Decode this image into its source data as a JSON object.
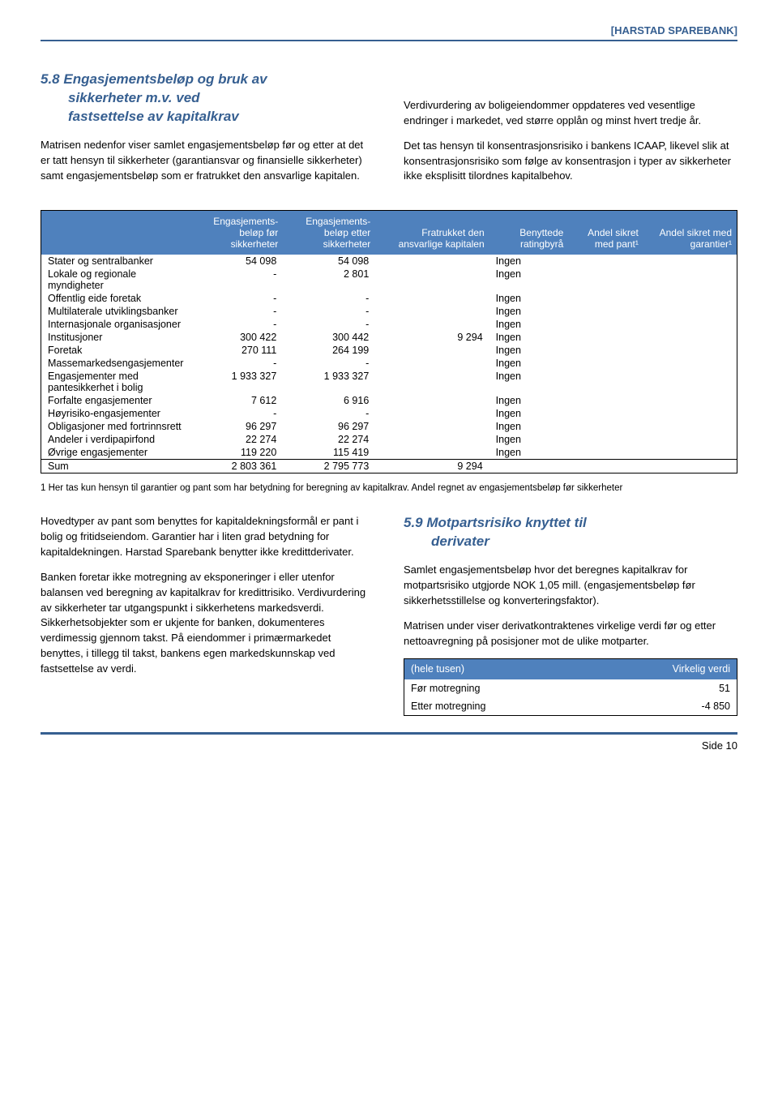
{
  "header": {
    "bank": "HARSTAD SPAREBANK"
  },
  "section58": {
    "title_line1": "5.8 Engasjementsbeløp og bruk av",
    "title_line2": "sikkerheter m.v. ved",
    "title_line3": "fastsettelse av kapitalkrav",
    "left_p1": "Matrisen nedenfor viser samlet engasjementsbeløp før og etter at det er tatt hensyn til sikkerheter (garantiansvar og finansielle sikkerheter) samt engasjementsbeløp som er fratrukket den ansvarlige kapitalen.",
    "right_p1": "Verdivurdering av boligeiendommer oppdateres ved vesentlige endringer i markedet, ved større opplån og minst hvert tredje år.",
    "right_p2": "Det tas hensyn til konsentrasjonsrisiko i bankens ICAAP, likevel slik at konsentrasjonsrisiko som følge av konsentrasjon i typer av sikkerheter ikke eksplisitt tilordnes kapitalbehov."
  },
  "table": {
    "headers": [
      "",
      "Engasjements-beløp før sikkerheter",
      "Engasjements-beløp etter sikkerheter",
      "Fratrukket den ansvarlige kapitalen",
      "Benyttede ratingbyrå",
      "Andel sikret med pant¹",
      "Andel sikret med garantier¹"
    ],
    "rows": [
      [
        "Stater og sentralbanker",
        "54 098",
        "54 098",
        "",
        "Ingen",
        "",
        ""
      ],
      [
        "Lokale og regionale myndigheter",
        "-",
        "2 801",
        "",
        "Ingen",
        "",
        ""
      ],
      [
        "Offentlig eide foretak",
        "-",
        "-",
        "",
        "Ingen",
        "",
        ""
      ],
      [
        "Multilaterale utviklingsbanker",
        "-",
        "-",
        "",
        "Ingen",
        "",
        ""
      ],
      [
        "Internasjonale organisasjoner",
        "-",
        "-",
        "",
        "Ingen",
        "",
        ""
      ],
      [
        "Institusjoner",
        "300 422",
        "300 442",
        "9 294",
        "Ingen",
        "",
        ""
      ],
      [
        "Foretak",
        "270 111",
        "264 199",
        "",
        "Ingen",
        "",
        ""
      ],
      [
        "Massemarkedsengasjementer",
        "-",
        "-",
        "",
        "Ingen",
        "",
        ""
      ],
      [
        "Engasjementer med pantesikkerhet i bolig",
        "1 933 327",
        "1 933 327",
        "",
        "Ingen",
        "",
        ""
      ],
      [
        "Forfalte engasjementer",
        "7 612",
        "6 916",
        "",
        "Ingen",
        "",
        ""
      ],
      [
        "Høyrisiko-engasjementer",
        "-",
        "-",
        "",
        "Ingen",
        "",
        ""
      ],
      [
        "Obligasjoner med fortrinnsrett",
        "96 297",
        "96 297",
        "",
        "Ingen",
        "",
        ""
      ],
      [
        "Andeler i verdipapirfond",
        "22 274",
        "22 274",
        "",
        "Ingen",
        "",
        ""
      ],
      [
        "Øvrige engasjementer",
        "119 220",
        "115 419",
        "",
        "Ingen",
        "",
        ""
      ]
    ],
    "sum": [
      "Sum",
      "2 803 361",
      "2 795 773",
      "9 294",
      "",
      "",
      ""
    ]
  },
  "footnote": "1 Her tas kun hensyn til garantier og pant som har betydning for beregning av kapitalkrav. Andel regnet av engasjementsbeløp før sikkerheter",
  "lower_left": {
    "p1": "Hovedtyper av pant som benyttes for kapitaldekningsformål er pant i bolig og fritidseiendom. Garantier har i liten grad betydning for kapitaldekningen. Harstad Sparebank benytter ikke kredittderivater.",
    "p2": "Banken foretar ikke motregning av eksponeringer i eller utenfor balansen ved beregning av kapitalkrav for kredittrisiko. Verdivurdering av sikkerheter tar utgangspunkt i sikkerhetens markedsverdi. Sikkerhetsobjekter som er ukjente for banken, dokumenteres verdimessig gjennom takst. På eiendommer i primærmarkedet benyttes, i tillegg til takst, bankens egen markedskunnskap ved fastsettelse av verdi."
  },
  "section59": {
    "title_line1": "5.9 Motpartsrisiko knyttet til",
    "title_line2": "derivater",
    "p1": "Samlet engasjementsbeløp hvor det beregnes kapitalkrav for motpartsrisiko utgjorde NOK 1,05 mill. (engasjementsbeløp før sikkerhetsstillelse og konverteringsfaktor).",
    "p2": "Matrisen under viser derivatkontraktenes virkelige verdi før og etter nettoavregning på posisjoner mot de ulike motparter."
  },
  "small_table": {
    "h1": "(hele tusen)",
    "h2": "Virkelig verdi",
    "r1c1": "Før motregning",
    "r1c2": "51",
    "r2c1": "Etter motregning",
    "r2c2": "-4 850"
  },
  "footer": {
    "page": "Side 10"
  }
}
